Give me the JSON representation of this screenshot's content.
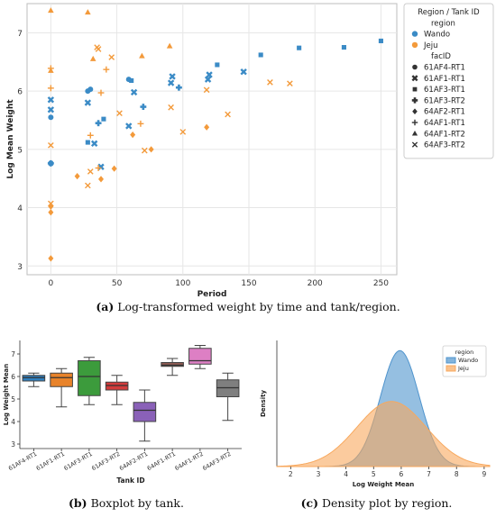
{
  "colors": {
    "Wando": "#3b8bc6",
    "Jeju": "#f39a3b",
    "tanks": [
      "#2f7fbf",
      "#e8832a",
      "#3c9b3c",
      "#d23b3b",
      "#8a61b8",
      "#8c5a52",
      "#dd7fc4",
      "#7f7f7f"
    ],
    "density_wando": "#4f94cd",
    "density_jeju": "#f8a85d"
  },
  "captions": {
    "a_tag": "(a)",
    "a_text": " Log-transformed weight by time and tank/region.",
    "b_tag": "(b)",
    "b_text": " Boxplot by tank.",
    "c_tag": "(c)",
    "c_text": " Density plot by region."
  },
  "chart_data": [
    {
      "type": "scatter",
      "title": "",
      "xlabel": "Period",
      "ylabel": "Log Mean Weight",
      "xlim": [
        -18,
        262
      ],
      "ylim": [
        2.85,
        7.5
      ],
      "xticks": [
        0,
        50,
        100,
        150,
        200,
        250
      ],
      "yticks": [
        3,
        4,
        5,
        6,
        7
      ],
      "grid": true,
      "legend": {
        "title": "Region / Tank ID",
        "placement": "outside-right",
        "region_header": "region",
        "regions": [
          "Wando",
          "Jeju"
        ],
        "facid_header": "facID",
        "facids": [
          "61AF4-RT1",
          "61AF1-RT1",
          "61AF3-RT1",
          "61AF3-RT2",
          "64AF2-RT1",
          "64AF1-RT1",
          "64AF1-RT2",
          "64AF3-RT2"
        ]
      },
      "marker_map": {
        "61AF4-RT1": "circle",
        "61AF1-RT1": "x",
        "61AF3-RT1": "square",
        "61AF3-RT2": "plus",
        "64AF2-RT1": "diamond",
        "64AF1-RT1": "thinplus",
        "64AF1-RT2": "triangle",
        "64AF3-RT2": "thinx"
      },
      "points": [
        {
          "x": 0,
          "y": 5.55,
          "region": "Wando",
          "tank": "61AF4-RT1"
        },
        {
          "x": 28,
          "y": 6.0,
          "region": "Wando",
          "tank": "61AF4-RT1"
        },
        {
          "x": 30,
          "y": 6.03,
          "region": "Wando",
          "tank": "61AF4-RT1"
        },
        {
          "x": 59,
          "y": 6.2,
          "region": "Wando",
          "tank": "61AF4-RT1"
        },
        {
          "x": 0,
          "y": 5.68,
          "region": "Wando",
          "tank": "61AF1-RT1"
        },
        {
          "x": 0,
          "y": 5.85,
          "region": "Wando",
          "tank": "61AF1-RT1"
        },
        {
          "x": 28,
          "y": 5.8,
          "region": "Wando",
          "tank": "61AF1-RT1"
        },
        {
          "x": 33,
          "y": 5.1,
          "region": "Wando",
          "tank": "61AF1-RT1"
        },
        {
          "x": 38,
          "y": 4.7,
          "region": "Wando",
          "tank": "61AF1-RT1"
        },
        {
          "x": 59,
          "y": 5.4,
          "region": "Wando",
          "tank": "61AF1-RT1"
        },
        {
          "x": 63,
          "y": 5.98,
          "region": "Wando",
          "tank": "61AF1-RT1"
        },
        {
          "x": 91,
          "y": 6.14,
          "region": "Wando",
          "tank": "61AF1-RT1"
        },
        {
          "x": 92,
          "y": 6.25,
          "region": "Wando",
          "tank": "61AF1-RT1"
        },
        {
          "x": 119,
          "y": 6.2,
          "region": "Wando",
          "tank": "61AF1-RT1"
        },
        {
          "x": 120,
          "y": 6.28,
          "region": "Wando",
          "tank": "61AF1-RT1"
        },
        {
          "x": 146,
          "y": 6.33,
          "region": "Wando",
          "tank": "61AF1-RT1"
        },
        {
          "x": 0,
          "y": 4.76,
          "region": "Wando",
          "tank": "61AF3-RT1"
        },
        {
          "x": 28,
          "y": 5.12,
          "region": "Wando",
          "tank": "61AF3-RT1"
        },
        {
          "x": 40,
          "y": 5.52,
          "region": "Wando",
          "tank": "61AF3-RT1"
        },
        {
          "x": 61,
          "y": 6.18,
          "region": "Wando",
          "tank": "61AF3-RT1"
        },
        {
          "x": 126,
          "y": 6.45,
          "region": "Wando",
          "tank": "61AF3-RT1"
        },
        {
          "x": 159,
          "y": 6.62,
          "region": "Wando",
          "tank": "61AF3-RT1"
        },
        {
          "x": 188,
          "y": 6.74,
          "region": "Wando",
          "tank": "61AF3-RT1"
        },
        {
          "x": 222,
          "y": 6.75,
          "region": "Wando",
          "tank": "61AF3-RT1"
        },
        {
          "x": 250,
          "y": 6.86,
          "region": "Wando",
          "tank": "61AF3-RT1"
        },
        {
          "x": 0,
          "y": 4.76,
          "region": "Wando",
          "tank": "61AF3-RT2"
        },
        {
          "x": 36,
          "y": 5.45,
          "region": "Wando",
          "tank": "61AF3-RT2"
        },
        {
          "x": 70,
          "y": 5.73,
          "region": "Wando",
          "tank": "61AF3-RT2"
        },
        {
          "x": 97,
          "y": 6.06,
          "region": "Wando",
          "tank": "61AF3-RT2"
        },
        {
          "x": 0,
          "y": 3.13,
          "region": "Jeju",
          "tank": "64AF2-RT1"
        },
        {
          "x": 0,
          "y": 3.92,
          "region": "Jeju",
          "tank": "64AF2-RT1"
        },
        {
          "x": 0,
          "y": 4.02,
          "region": "Jeju",
          "tank": "64AF2-RT1"
        },
        {
          "x": 20,
          "y": 4.54,
          "region": "Jeju",
          "tank": "64AF2-RT1"
        },
        {
          "x": 38,
          "y": 4.49,
          "region": "Jeju",
          "tank": "64AF2-RT1"
        },
        {
          "x": 48,
          "y": 4.67,
          "region": "Jeju",
          "tank": "64AF2-RT1"
        },
        {
          "x": 62,
          "y": 5.25,
          "region": "Jeju",
          "tank": "64AF2-RT1"
        },
        {
          "x": 76,
          "y": 5.0,
          "region": "Jeju",
          "tank": "64AF2-RT1"
        },
        {
          "x": 118,
          "y": 5.38,
          "region": "Jeju",
          "tank": "64AF2-RT1"
        },
        {
          "x": 0,
          "y": 6.05,
          "region": "Jeju",
          "tank": "64AF1-RT1"
        },
        {
          "x": 0,
          "y": 6.39,
          "region": "Jeju",
          "tank": "64AF1-RT1"
        },
        {
          "x": 30,
          "y": 5.24,
          "region": "Jeju",
          "tank": "64AF1-RT1"
        },
        {
          "x": 36,
          "y": 4.68,
          "region": "Jeju",
          "tank": "64AF1-RT1"
        },
        {
          "x": 38,
          "y": 5.97,
          "region": "Jeju",
          "tank": "64AF1-RT1"
        },
        {
          "x": 42,
          "y": 6.37,
          "region": "Jeju",
          "tank": "64AF1-RT1"
        },
        {
          "x": 68,
          "y": 5.44,
          "region": "Jeju",
          "tank": "64AF1-RT1"
        },
        {
          "x": 0,
          "y": 6.35,
          "region": "Jeju",
          "tank": "64AF1-RT2"
        },
        {
          "x": 0,
          "y": 7.38,
          "region": "Jeju",
          "tank": "64AF1-RT2"
        },
        {
          "x": 28,
          "y": 7.35,
          "region": "Jeju",
          "tank": "64AF1-RT2"
        },
        {
          "x": 32,
          "y": 6.55,
          "region": "Jeju",
          "tank": "64AF1-RT2"
        },
        {
          "x": 69,
          "y": 6.6,
          "region": "Jeju",
          "tank": "64AF1-RT2"
        },
        {
          "x": 90,
          "y": 6.77,
          "region": "Jeju",
          "tank": "64AF1-RT2"
        },
        {
          "x": 0,
          "y": 4.07,
          "region": "Jeju",
          "tank": "64AF3-RT2"
        },
        {
          "x": 0,
          "y": 5.07,
          "region": "Jeju",
          "tank": "64AF3-RT2"
        },
        {
          "x": 28,
          "y": 4.38,
          "region": "Jeju",
          "tank": "64AF3-RT2"
        },
        {
          "x": 30,
          "y": 4.62,
          "region": "Jeju",
          "tank": "64AF3-RT2"
        },
        {
          "x": 35,
          "y": 6.75,
          "region": "Jeju",
          "tank": "64AF3-RT2"
        },
        {
          "x": 36,
          "y": 6.72,
          "region": "Jeju",
          "tank": "64AF3-RT2"
        },
        {
          "x": 46,
          "y": 6.58,
          "region": "Jeju",
          "tank": "64AF3-RT2"
        },
        {
          "x": 52,
          "y": 5.62,
          "region": "Jeju",
          "tank": "64AF3-RT2"
        },
        {
          "x": 71,
          "y": 4.98,
          "region": "Jeju",
          "tank": "64AF3-RT2"
        },
        {
          "x": 91,
          "y": 5.72,
          "region": "Jeju",
          "tank": "64AF3-RT2"
        },
        {
          "x": 100,
          "y": 5.3,
          "region": "Jeju",
          "tank": "64AF3-RT2"
        },
        {
          "x": 118,
          "y": 6.02,
          "region": "Jeju",
          "tank": "64AF3-RT2"
        },
        {
          "x": 134,
          "y": 5.6,
          "region": "Jeju",
          "tank": "64AF3-RT2"
        },
        {
          "x": 166,
          "y": 6.15,
          "region": "Jeju",
          "tank": "64AF3-RT2"
        },
        {
          "x": 181,
          "y": 6.13,
          "region": "Jeju",
          "tank": "64AF3-RT2"
        }
      ]
    },
    {
      "type": "box",
      "title": "",
      "xlabel": "Tank ID",
      "ylabel": "Log Weight Mean",
      "ylim": [
        2.8,
        7.6
      ],
      "yticks": [
        3,
        4,
        5,
        6,
        7
      ],
      "grid": false,
      "categories": [
        "61AF4-RT1",
        "61AF1-RT1",
        "61AF3-RT1",
        "61AF3-RT2",
        "64AF2-RT1",
        "64AF1-RT1",
        "64AF1-RT2",
        "64AF3-RT2"
      ],
      "boxes": [
        {
          "whislo": 5.55,
          "q1": 5.8,
          "med": 5.95,
          "q3": 6.05,
          "whishi": 6.15
        },
        {
          "whislo": 4.65,
          "q1": 5.55,
          "med": 5.95,
          "q3": 6.15,
          "whishi": 6.35
        },
        {
          "whislo": 4.75,
          "q1": 5.15,
          "med": 6.0,
          "q3": 6.7,
          "whishi": 6.85
        },
        {
          "whislo": 4.75,
          "q1": 5.4,
          "med": 5.6,
          "q3": 5.75,
          "whishi": 6.05
        },
        {
          "whislo": 3.13,
          "q1": 4.0,
          "med": 4.5,
          "q3": 4.85,
          "whishi": 5.4
        },
        {
          "whislo": 6.05,
          "q1": 6.45,
          "med": 6.5,
          "q3": 6.62,
          "whishi": 6.8
        },
        {
          "whislo": 6.35,
          "q1": 6.55,
          "med": 6.7,
          "q3": 7.25,
          "whishi": 7.38
        },
        {
          "whislo": 4.05,
          "q1": 5.1,
          "med": 5.5,
          "q3": 5.85,
          "whishi": 6.15
        }
      ]
    },
    {
      "type": "area",
      "title": "",
      "xlabel": "Log Weight Mean",
      "ylabel": "Density",
      "xlim": [
        1.5,
        9.2
      ],
      "ylim": [
        0,
        0.62
      ],
      "xticks": [
        2,
        3,
        4,
        5,
        6,
        7,
        8,
        9
      ],
      "grid": false,
      "legend": {
        "title": "region",
        "placement": "top-right",
        "entries": [
          "Wando",
          "Jeju"
        ]
      },
      "series": [
        {
          "name": "Wando",
          "mean": 5.95,
          "sd": 0.7,
          "peak": 0.57
        },
        {
          "name": "Jeju",
          "mean": 5.65,
          "sd": 1.25,
          "peak": 0.32
        }
      ]
    }
  ]
}
